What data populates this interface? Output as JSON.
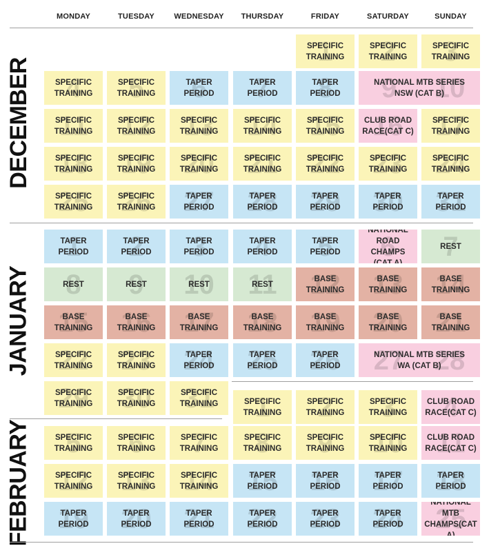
{
  "days": [
    "MONDAY",
    "TUESDAY",
    "WEDNESDAY",
    "THURSDAY",
    "FRIDAY",
    "SATURDAY",
    "SUNDAY"
  ],
  "months": [
    "DECEMBER",
    "JANUARY",
    "FEBRUARY"
  ],
  "colors": {
    "specific": "#fbf4b8",
    "taper": "#c6e5f5",
    "rest": "#d6e9d2",
    "base": "#e3b2a4",
    "race": "#f9cfe0"
  },
  "weeks": [
    [
      null,
      null,
      null,
      null,
      {
        "day": "1",
        "label": "SPECIFIC\nTRAINING",
        "type": "specific"
      },
      {
        "day": "2",
        "label": "SPECIFIC\nTRAINING",
        "type": "specific"
      },
      {
        "day": "3",
        "label": "SPECIFIC\nTRAINING",
        "type": "specific"
      }
    ],
    [
      {
        "day": "4",
        "label": "SPECIFIC\nTRAINING",
        "type": "specific"
      },
      {
        "day": "5",
        "label": "SPECIFIC\nTRAINING",
        "type": "specific"
      },
      {
        "day": "6",
        "label": "TAPER\nPERIOD",
        "type": "taper"
      },
      {
        "day": "7",
        "label": "TAPER\nPERIOD",
        "type": "taper"
      },
      {
        "day": "8",
        "label": "TAPER\nPERIOD",
        "type": "taper"
      },
      {
        "day": "9",
        "day2": "10",
        "label": "NATIONAL MTB SERIES\nNSW (CAT B)",
        "type": "race",
        "span": 2
      },
      null
    ],
    [
      {
        "day": "11",
        "label": "SPECIFIC\nTRAINING",
        "type": "specific"
      },
      {
        "day": "12",
        "label": "SPECIFIC\nTRAINING",
        "type": "specific"
      },
      {
        "day": "13",
        "label": "SPECIFIC\nTRAINING",
        "type": "specific"
      },
      {
        "day": "14",
        "label": "SPECIFIC\nTRAINING",
        "type": "specific"
      },
      {
        "day": "15",
        "label": "SPECIFIC\nTRAINING",
        "type": "specific"
      },
      {
        "day": "16",
        "label": "CLUB ROAD\nRACE(CAT C)",
        "type": "race"
      },
      {
        "day": "17",
        "label": "SPECIFIC\nTRAINING",
        "type": "specific"
      }
    ],
    [
      {
        "day": "18",
        "label": "SPECIFIC\nTRAINING",
        "type": "specific"
      },
      {
        "day": "19",
        "label": "SPECIFIC\nTRAINING",
        "type": "specific"
      },
      {
        "day": "20",
        "label": "SPECIFIC\nTRAINING",
        "type": "specific"
      },
      {
        "day": "21",
        "label": "SPECIFIC\nTRAINING",
        "type": "specific"
      },
      {
        "day": "22",
        "label": "SPECIFIC\nTRAINING",
        "type": "specific"
      },
      {
        "day": "23",
        "label": "SPECIFIC\nTRAINING",
        "type": "specific"
      },
      {
        "day": "24",
        "label": "SPECIFIC\nTRAINING",
        "type": "specific"
      }
    ],
    [
      {
        "day": "25",
        "label": "SPECIFIC\nTRAINING",
        "type": "specific"
      },
      {
        "day": "26",
        "label": "SPECIFIC\nTRAINING",
        "type": "specific"
      },
      {
        "day": "27",
        "label": "TAPER\nPERIOD",
        "type": "taper"
      },
      {
        "day": "28",
        "label": "TAPER\nPERIOD",
        "type": "taper"
      },
      {
        "day": "29",
        "label": "TAPER\nPERIOD",
        "type": "taper"
      },
      {
        "day": "30",
        "label": "TAPER\nPERIOD",
        "type": "taper"
      },
      {
        "day": "31",
        "label": "TAPER\nPERIOD",
        "type": "taper"
      }
    ],
    [
      {
        "day": "1",
        "label": "TAPER\nPERIOD",
        "type": "taper"
      },
      {
        "day": "2",
        "label": "TAPER\nPERIOD",
        "type": "taper"
      },
      {
        "day": "3",
        "label": "TAPER\nPERIOD",
        "type": "taper"
      },
      {
        "day": "4",
        "label": "TAPER\nPERIOD",
        "type": "taper"
      },
      {
        "day": "5",
        "label": "TAPER\nPERIOD",
        "type": "taper"
      },
      {
        "day": "6",
        "label": "NATIONAL\nROAD CHAMPS\n(CAT A)",
        "type": "race"
      },
      {
        "day": "7",
        "label": "REST",
        "type": "rest"
      }
    ],
    [
      {
        "day": "8",
        "label": "REST",
        "type": "rest"
      },
      {
        "day": "9",
        "label": "REST",
        "type": "rest"
      },
      {
        "day": "10",
        "label": "REST",
        "type": "rest"
      },
      {
        "day": "11",
        "label": "REST",
        "type": "rest"
      },
      {
        "day": "12",
        "label": "BASE\nTRAINING",
        "type": "base"
      },
      {
        "day": "13",
        "label": "BASE\nTRAINING",
        "type": "base"
      },
      {
        "day": "14",
        "label": "BASE\nTRAINING",
        "type": "base"
      }
    ],
    [
      {
        "day": "15",
        "label": "BASE\nTRAINING",
        "type": "base"
      },
      {
        "day": "16",
        "label": "BASE\nTRAINING",
        "type": "base"
      },
      {
        "day": "17",
        "label": "BASE\nTRAINING",
        "type": "base"
      },
      {
        "day": "18",
        "label": "BASE\nTRAINING",
        "type": "base"
      },
      {
        "day": "19",
        "label": "BASE\nTRAINING",
        "type": "base"
      },
      {
        "day": "20",
        "label": "BASE\nTRAINING",
        "type": "base"
      },
      {
        "day": "21",
        "label": "BASE\nTRAINING",
        "type": "base"
      }
    ],
    [
      {
        "day": "22",
        "label": "SPECIFIC\nTRAINING",
        "type": "specific"
      },
      {
        "day": "23",
        "label": "SPECIFIC\nTRAINING",
        "type": "specific"
      },
      {
        "day": "24",
        "label": "TAPER\nPERIOD",
        "type": "taper"
      },
      {
        "day": "25",
        "label": "TAPER\nPERIOD",
        "type": "taper"
      },
      {
        "day": "26",
        "label": "TAPER\nPERIOD",
        "type": "taper"
      },
      {
        "day": "27",
        "day2": "28",
        "label": "NATIONAL MTB SERIES\nWA (CAT B)",
        "type": "race",
        "span": 2
      },
      null
    ],
    [
      {
        "day": "29",
        "label": "SPECIFIC\nTRAINING",
        "type": "specific"
      },
      {
        "day": "30",
        "label": "SPECIFIC\nTRAINING",
        "type": "specific"
      },
      {
        "day": "31",
        "label": "SPECIFIC\nTRAINING",
        "type": "specific"
      },
      {
        "day": "1",
        "label": "SPECIFIC\nTRAINING",
        "type": "specific"
      },
      {
        "day": "2",
        "label": "SPECIFIC\nTRAINING",
        "type": "specific"
      },
      {
        "day": "3",
        "label": "SPECIFIC\nTRAINING",
        "type": "specific"
      },
      {
        "day": "4",
        "label": "CLUB ROAD\nRACE(CAT C)",
        "type": "race"
      }
    ],
    [
      {
        "day": "5",
        "label": "SPECIFIC\nTRAINING",
        "type": "specific"
      },
      {
        "day": "6",
        "label": "SPECIFIC\nTRAINING",
        "type": "specific"
      },
      {
        "day": "7",
        "label": "SPECIFIC\nTRAINING",
        "type": "specific"
      },
      {
        "day": "8",
        "label": "SPECIFIC\nTRAINING",
        "type": "specific"
      },
      {
        "day": "9",
        "label": "SPECIFIC\nTRAINING",
        "type": "specific"
      },
      {
        "day": "10",
        "label": "SPECIFIC\nTRAINING",
        "type": "specific"
      },
      {
        "day": "11",
        "label": "CLUB ROAD\nRACE(CAT C)",
        "type": "race"
      }
    ],
    [
      {
        "day": "12",
        "label": "SPECIFIC\nTRAINING",
        "type": "specific"
      },
      {
        "day": "13",
        "label": "SPECIFIC\nTRAINING",
        "type": "specific"
      },
      {
        "day": "14",
        "label": "SPECIFIC\nTRAINING",
        "type": "specific"
      },
      {
        "day": "15",
        "label": "TAPER\nPERIOD",
        "type": "taper"
      },
      {
        "day": "16",
        "label": "TAPER\nPERIOD",
        "type": "taper"
      },
      {
        "day": "17",
        "label": "TAPER\nPERIOD",
        "type": "taper"
      },
      {
        "day": "18",
        "label": "TAPER\nPERIOD",
        "type": "taper"
      }
    ],
    [
      {
        "day": "19",
        "label": "TAPER\nPERIOD",
        "type": "taper"
      },
      {
        "day": "20",
        "label": "TAPER\nPERIOD",
        "type": "taper"
      },
      {
        "day": "21",
        "label": "TAPER\nPERIOD",
        "type": "taper"
      },
      {
        "day": "22",
        "label": "TAPER\nPERIOD",
        "type": "taper"
      },
      {
        "day": "23",
        "label": "TAPER\nPERIOD",
        "type": "taper"
      },
      {
        "day": "24",
        "label": "TAPER\nPERIOD",
        "type": "taper"
      },
      {
        "day": "25",
        "label": "NATIONAL MTB\nCHAMPS(CAT A)",
        "type": "race"
      }
    ]
  ]
}
